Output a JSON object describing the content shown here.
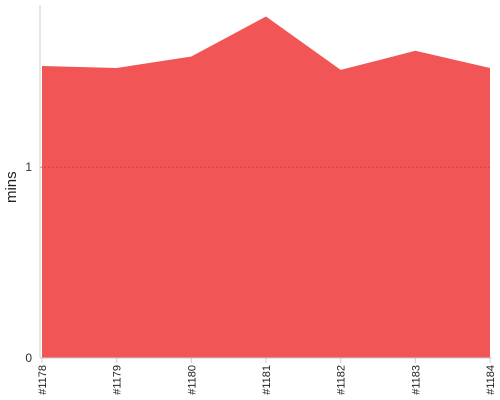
{
  "chart_data": {
    "type": "area",
    "title": "",
    "xlabel": "",
    "ylabel": "mins",
    "categories": [
      "#1178",
      "#1179",
      "#1180",
      "#1181",
      "#1182",
      "#1183",
      "#1184"
    ],
    "series": [
      {
        "values": [
          1.53,
          1.52,
          1.58,
          1.79,
          1.51,
          1.61,
          1.52
        ]
      }
    ],
    "ylim": [
      0,
      1.85
    ],
    "yticks": [
      0,
      1
    ],
    "yticks_labels": [
      "0",
      "1"
    ],
    "grid": {
      "y": true,
      "x": false,
      "style": "dotted"
    },
    "legend": "none",
    "colors": {
      "area_fill": "#f25555",
      "grid_line": "#c43a3a",
      "axis_line": "#cccccc"
    }
  }
}
